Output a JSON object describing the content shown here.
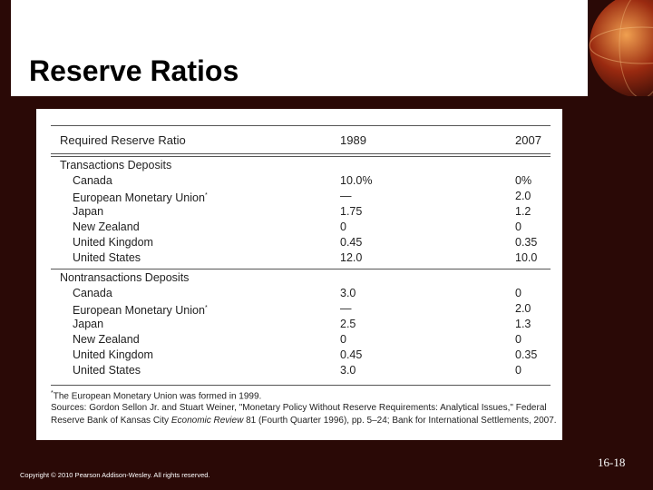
{
  "header": {
    "title": "Reserve Ratios"
  },
  "table": {
    "columns": [
      "Required Reserve Ratio",
      "1989",
      "2007"
    ],
    "sections": [
      {
        "name": "Transactions Deposits",
        "rows": [
          {
            "label": "Canada",
            "values": [
              "10.0%",
              "0%"
            ]
          },
          {
            "label": "European Monetary Union",
            "note": "*",
            "values": [
              "—",
              "2.0"
            ]
          },
          {
            "label": "Japan",
            "values": [
              "1.75",
              "1.2"
            ]
          },
          {
            "label": "New Zealand",
            "values": [
              "0",
              "0"
            ]
          },
          {
            "label": "United Kingdom",
            "values": [
              "0.45",
              "0.35"
            ]
          },
          {
            "label": "United States",
            "values": [
              "12.0",
              "10.0"
            ]
          }
        ]
      },
      {
        "name": "Nontransactions Deposits",
        "rows": [
          {
            "label": "Canada",
            "values": [
              "3.0",
              "0"
            ]
          },
          {
            "label": "European Monetary Union",
            "note": "*",
            "values": [
              "—",
              "2.0"
            ]
          },
          {
            "label": "Japan",
            "values": [
              "2.5",
              "1.3"
            ]
          },
          {
            "label": "New Zealand",
            "values": [
              "0",
              "0"
            ]
          },
          {
            "label": "United Kingdom",
            "values": [
              "0.45",
              "0.35"
            ]
          },
          {
            "label": "United States",
            "values": [
              "3.0",
              "0"
            ]
          }
        ]
      }
    ],
    "footnote": {
      "marker": "*",
      "text": "The European Monetary Union was formed in 1999."
    },
    "sources": [
      "Sources: Gordon Sellon Jr. and Stuart Weiner, \"Monetary Policy Without Reserve Requirements: Analytical Issues,\" Federal",
      "Reserve Bank of Kansas City ",
      "Economic Review",
      " 81 (Fourth Quarter 1996), pp. 5–24; Bank for International Settlements, 2007."
    ]
  },
  "footer": {
    "copyright": "Copyright © 2010 Pearson Addison-Wesley. All rights reserved.",
    "slide_number": "16-18"
  }
}
